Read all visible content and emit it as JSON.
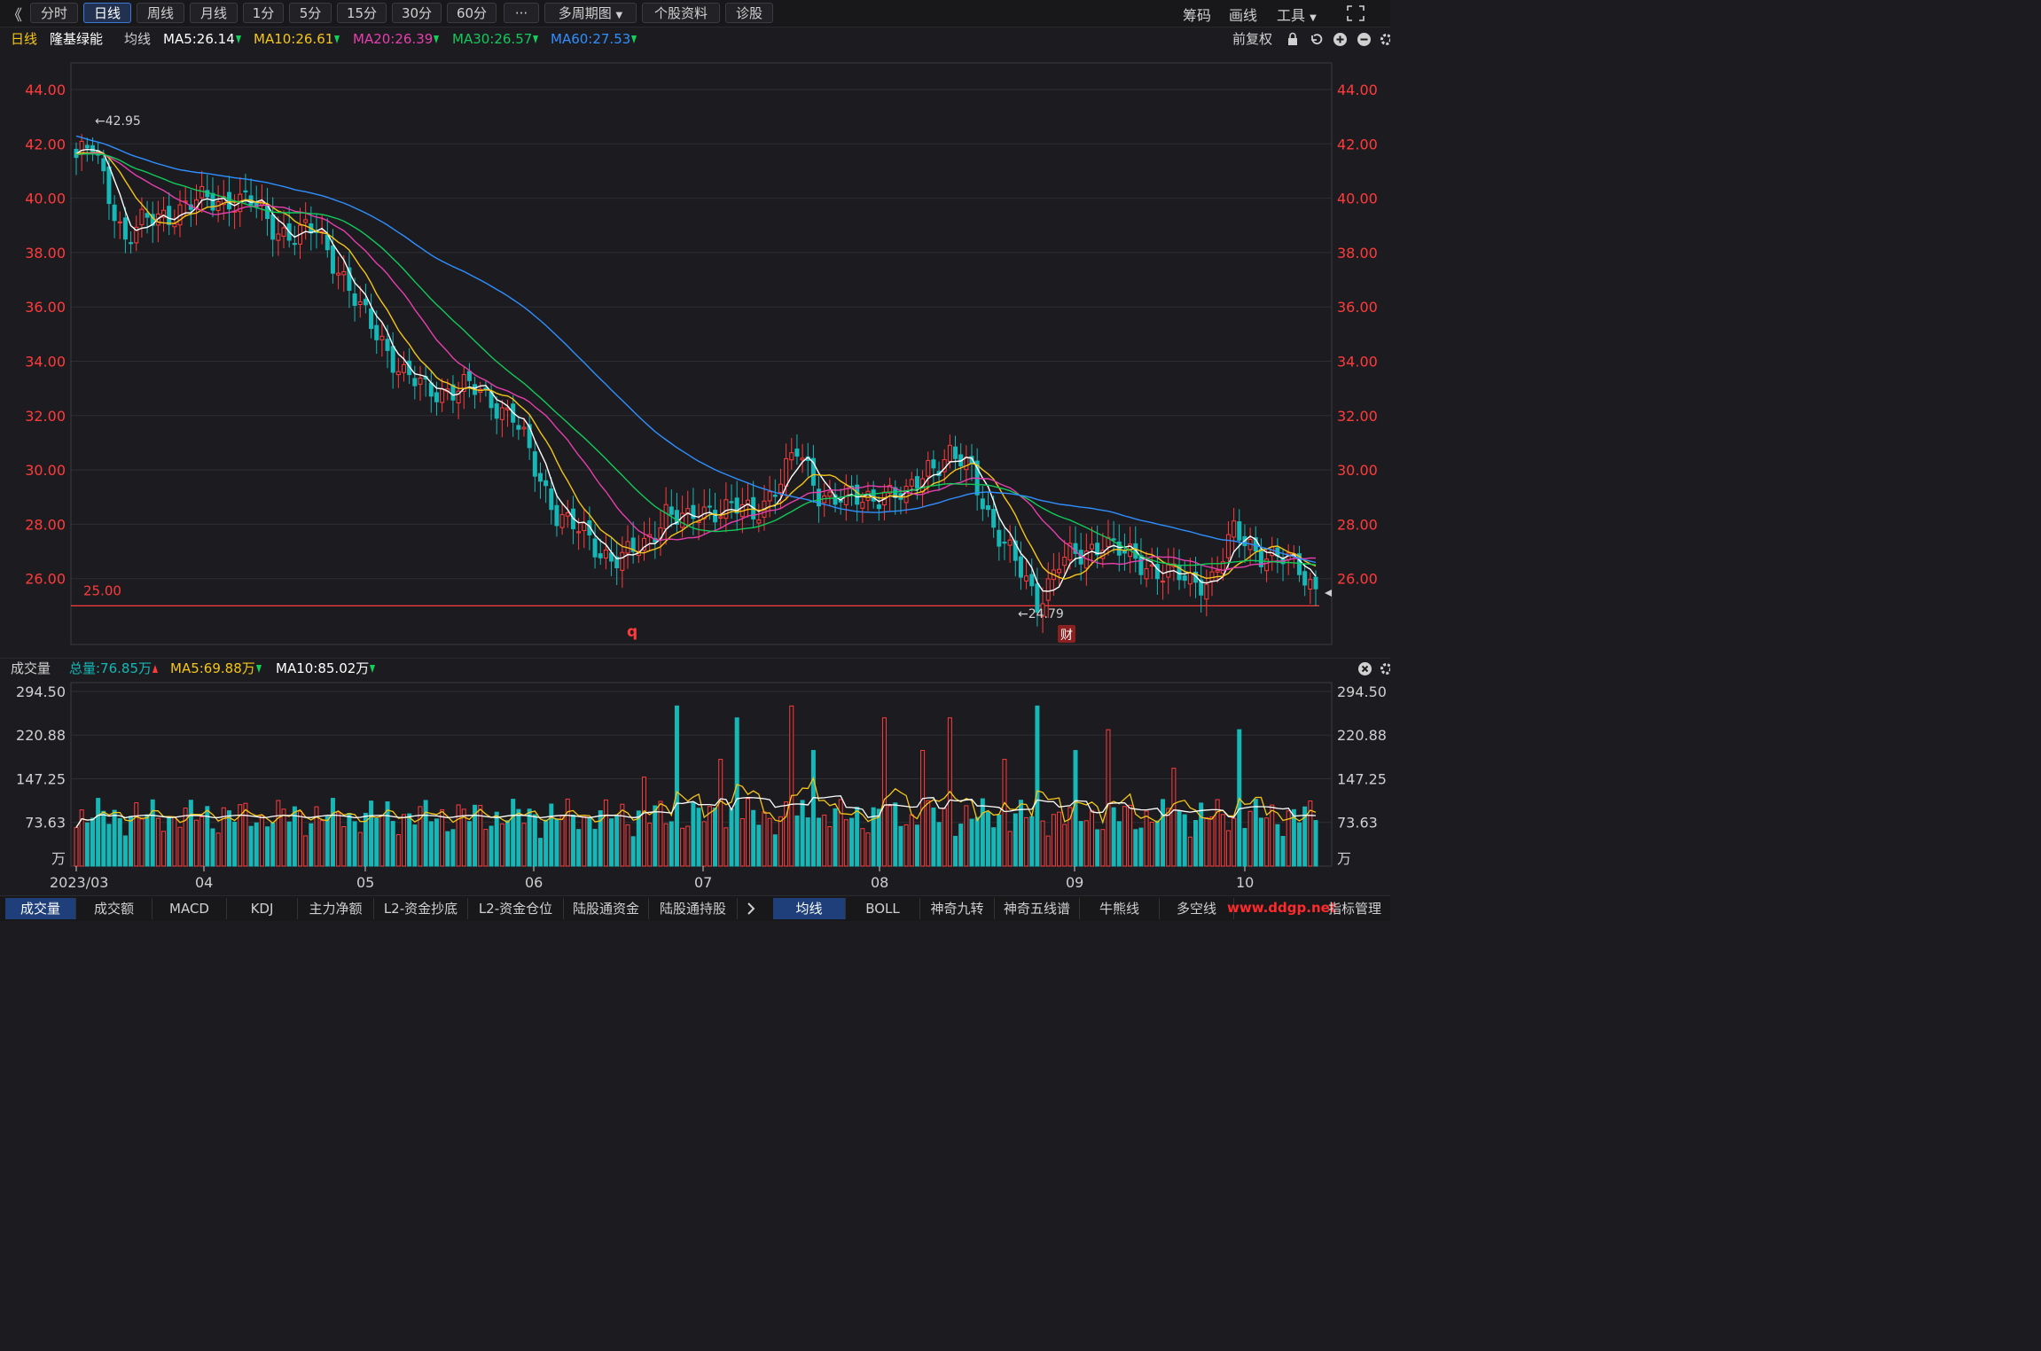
{
  "toolbar": {
    "back_label": "《",
    "periods": [
      "分时",
      "日线",
      "周线",
      "月线",
      "1分",
      "5分",
      "15分",
      "30分",
      "60分",
      "···"
    ],
    "active_period": "日线",
    "multi_period_label": "多周期图",
    "stock_info_label": "个股资料",
    "diagnose_label": "诊股",
    "chips_label": "筹码",
    "draw_label": "画线",
    "tools_label": "工具"
  },
  "header": {
    "period_label": "日线",
    "stock_name": "隆基绿能",
    "ma_title": "均线",
    "ma": [
      {
        "label": "MA5:26.14",
        "color": "#ffffff"
      },
      {
        "label": "MA10:26.61",
        "color": "#f5c518"
      },
      {
        "label": "MA20:26.39",
        "color": "#e63fae"
      },
      {
        "label": "MA30:26.57",
        "color": "#13c95a"
      },
      {
        "label": "MA60:27.53",
        "color": "#2f8fff"
      }
    ],
    "adjust_label": "前复权"
  },
  "volume_header": {
    "title": "成交量",
    "total": "总量:76.85万",
    "ma5": "MA5:69.88万",
    "ma10": "MA10:85.02万"
  },
  "colors": {
    "up": "#ff3b3b",
    "down": "#16b7b7",
    "ma5": "#ffffff",
    "ma10": "#f5c518",
    "ma20": "#e63fae",
    "ma30": "#13c95a",
    "ma60": "#2f8fff",
    "axis_text": "#ff3b3b"
  },
  "chart_data": [
    {
      "type": "candlestick",
      "title": "隆基绿能 日线",
      "ylim": [
        24.0,
        45.0
      ],
      "y_ticks": [
        "44.00",
        "42.00",
        "40.00",
        "38.00",
        "36.00",
        "34.00",
        "32.00",
        "30.00",
        "28.00",
        "26.00"
      ],
      "x_ticks": [
        "2023/03",
        "04",
        "05",
        "06",
        "07",
        "08",
        "09",
        "10"
      ],
      "reference_line": {
        "value": 25.0,
        "label": "25.00"
      },
      "annotations": [
        {
          "label": "←42.95",
          "type": "max"
        },
        {
          "label": "←24.79",
          "type": "min"
        },
        {
          "label": "q",
          "type": "marker"
        },
        {
          "label": "财",
          "type": "event"
        }
      ],
      "ma_endpoints": {
        "MA5": 26.14,
        "MA10": 26.61,
        "MA20": 26.39,
        "MA30": 26.57,
        "MA60": 27.53
      }
    },
    {
      "type": "bar",
      "title": "成交量",
      "unit": "万",
      "y_ticks": [
        "294.50",
        "220.88",
        "147.25",
        "73.63"
      ],
      "ylim": [
        0,
        294.5
      ],
      "last_volume": 76.85
    }
  ],
  "bottom_tabs_left": [
    "成交量",
    "成交额",
    "MACD",
    "KDJ",
    "主力净额",
    "L2-资金抄底",
    "L2-资金仓位",
    "陆股通资金",
    "陆股通持股"
  ],
  "bottom_tabs_right": [
    "均线",
    "BOLL",
    "神奇九转",
    "神奇五线谱",
    "牛熊线",
    "多空线"
  ],
  "bottom_last_tab": "指标管理",
  "watermark": "www.ddgp.net"
}
